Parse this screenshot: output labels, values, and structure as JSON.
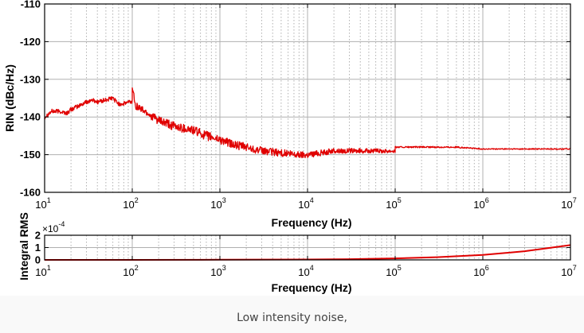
{
  "caption": "Low intensity noise,",
  "colors": {
    "series": "#e00000",
    "grid": "#b0b0b0",
    "axis": "#000000"
  },
  "chart_data": [
    {
      "type": "line",
      "title": "",
      "xlabel": "Frequency (Hz)",
      "ylabel": "RIN (dBc/Hz)",
      "xscale": "log",
      "xlim": [
        10,
        10000000
      ],
      "ylim": [
        -160,
        -110
      ],
      "xticks": [
        10,
        100,
        1000,
        10000,
        100000,
        1000000,
        10000000
      ],
      "xtick_labels": [
        {
          "base": "10",
          "exp": "1"
        },
        {
          "base": "10",
          "exp": "2"
        },
        {
          "base": "10",
          "exp": "3"
        },
        {
          "base": "10",
          "exp": "4"
        },
        {
          "base": "10",
          "exp": "5"
        },
        {
          "base": "10",
          "exp": "6"
        },
        {
          "base": "10",
          "exp": "7"
        }
      ],
      "yticks": [
        -160,
        -150,
        -140,
        -130,
        -120,
        -110
      ],
      "ytick_labels": [
        "-160",
        "-150",
        "-140",
        "-130",
        "-120",
        "-110"
      ],
      "grid": true,
      "series": [
        {
          "x": [
            10,
            12,
            15,
            18,
            20,
            25,
            30,
            35,
            40,
            50,
            60,
            70,
            80,
            90,
            100,
            100,
            110,
            130,
            150,
            200,
            300,
            500,
            700,
            1000,
            1500,
            2000,
            3000,
            5000,
            7000,
            10000,
            20000,
            50000,
            100000,
            100000,
            200000,
            500000,
            1000000,
            2000000,
            5000000,
            10000000
          ],
          "y": [
            -140,
            -138.5,
            -138.5,
            -139,
            -138,
            -137,
            -136,
            -135.5,
            -136,
            -135.5,
            -135,
            -136.5,
            -136.5,
            -136,
            -136,
            -132,
            -137,
            -138,
            -139,
            -141,
            -142.5,
            -143.5,
            -145,
            -146,
            -147.5,
            -148,
            -149,
            -149.5,
            -150,
            -150,
            -149,
            -149,
            -149,
            -148,
            -148,
            -148,
            -148.5,
            -148.5,
            -148.5,
            -148.5
          ],
          "noise": [
            0.6,
            0.6,
            0.6,
            0.6,
            0.6,
            0.6,
            0.6,
            0.6,
            0.6,
            0.6,
            0.6,
            0.6,
            0.6,
            0.6,
            0.6,
            0.6,
            1.0,
            1.0,
            1.0,
            1.2,
            1.2,
            1.2,
            1.2,
            1.2,
            1.1,
            1.1,
            1.0,
            1.0,
            1.0,
            0.9,
            0.7,
            0.6,
            0.5,
            0.2,
            0.2,
            0.2,
            0.15,
            0.15,
            0.15,
            0.15
          ]
        }
      ]
    },
    {
      "type": "line",
      "title": "",
      "xlabel": "Frequency (Hz)",
      "ylabel": "Integral RMS",
      "y_multiplier": {
        "base": "×10",
        "exp": "-4"
      },
      "xscale": "log",
      "xlim": [
        10,
        10000000
      ],
      "ylim": [
        0,
        2
      ],
      "xticks": [
        10,
        100,
        1000,
        10000,
        100000,
        1000000,
        10000000
      ],
      "xtick_labels": [
        {
          "base": "10",
          "exp": "1"
        },
        {
          "base": "10",
          "exp": "2"
        },
        {
          "base": "10",
          "exp": "3"
        },
        {
          "base": "10",
          "exp": "4"
        },
        {
          "base": "10",
          "exp": "5"
        },
        {
          "base": "10",
          "exp": "6"
        },
        {
          "base": "10",
          "exp": "7"
        }
      ],
      "yticks": [
        0,
        1,
        2
      ],
      "ytick_labels": [
        "0",
        "1",
        "2"
      ],
      "grid": true,
      "series": [
        {
          "x": [
            10,
            100,
            1000,
            10000,
            30000,
            100000,
            300000,
            1000000,
            3000000,
            10000000
          ],
          "y": [
            0,
            0.003,
            0.01,
            0.03,
            0.06,
            0.12,
            0.22,
            0.4,
            0.7,
            1.2
          ]
        }
      ]
    }
  ]
}
